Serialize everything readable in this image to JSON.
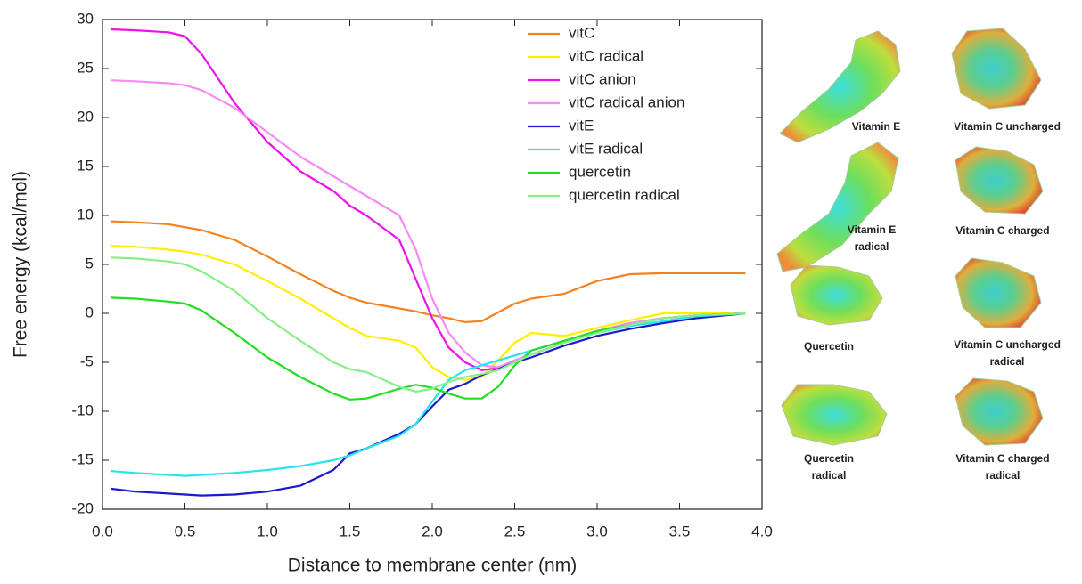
{
  "chart_data": {
    "type": "line",
    "x_label": "Distance to membrane center (nm)",
    "y_label": "Free energy (kcal/mol)",
    "xlim": [
      0,
      4
    ],
    "ylim": [
      -20,
      30
    ],
    "xticks": [
      {
        "value": 0,
        "label": "0.0"
      },
      {
        "value": 0.5,
        "label": "0.5"
      },
      {
        "value": 1,
        "label": "1.0"
      },
      {
        "value": 1.5,
        "label": "1.5"
      },
      {
        "value": 2,
        "label": "2.0"
      },
      {
        "value": 2.5,
        "label": "2.5"
      },
      {
        "value": 3,
        "label": "3.0"
      },
      {
        "value": 3.5,
        "label": "3.5"
      },
      {
        "value": 4,
        "label": "4.0"
      }
    ],
    "yticks": [
      -20,
      -15,
      -10,
      -5,
      0,
      5,
      10,
      15,
      20,
      25,
      30
    ],
    "legend": "upper right",
    "x": [
      0.05,
      0.2,
      0.4,
      0.5,
      0.6,
      0.8,
      1.0,
      1.2,
      1.4,
      1.5,
      1.6,
      1.8,
      1.9,
      2.0,
      2.1,
      2.2,
      2.3,
      2.4,
      2.5,
      2.6,
      2.8,
      3.0,
      3.2,
      3.4,
      3.6,
      3.9
    ],
    "series": [
      {
        "name": "vitC",
        "color": "#f5821f",
        "values": [
          9.4,
          9.3,
          9.1,
          8.8,
          8.5,
          7.5,
          5.8,
          4.0,
          2.3,
          1.6,
          1.1,
          0.5,
          0.2,
          -0.2,
          -0.5,
          -0.9,
          -0.8,
          0.1,
          1.0,
          1.5,
          2.0,
          3.3,
          4.0,
          4.1,
          4.1,
          4.1
        ]
      },
      {
        "name": "vitC radical",
        "color": "#ffee00",
        "values": [
          6.9,
          6.8,
          6.5,
          6.3,
          6.0,
          5.0,
          3.3,
          1.5,
          -0.5,
          -1.5,
          -2.3,
          -2.8,
          -3.5,
          -5.5,
          -6.5,
          -6.8,
          -6.5,
          -4.8,
          -3.0,
          -2.0,
          -2.3,
          -1.5,
          -0.7,
          0.0,
          0.0,
          0.0
        ]
      },
      {
        "name": "vitC anion",
        "color": "#ee11ee",
        "values": [
          29,
          28.9,
          28.7,
          28.3,
          26.5,
          21.5,
          17.5,
          14.5,
          12.5,
          11.0,
          10.0,
          7.5,
          3.5,
          -0.5,
          -3.5,
          -5.0,
          -5.8,
          -5.6,
          -4.8,
          -4.2,
          -3.0,
          -1.8,
          -1.0,
          -0.5,
          -0.2,
          0.0
        ]
      },
      {
        "name": "vitC radical anion",
        "color": "#f78af7",
        "values": [
          23.8,
          23.7,
          23.5,
          23.3,
          22.8,
          21.0,
          18.5,
          16.0,
          14.0,
          13.0,
          12.0,
          10.0,
          6.5,
          1.5,
          -2.0,
          -4.0,
          -5.3,
          -5.5,
          -4.8,
          -4.2,
          -3.0,
          -1.8,
          -1.0,
          -0.5,
          -0.2,
          0.0
        ]
      },
      {
        "name": "vitE",
        "color": "#1a1acc",
        "values": [
          -17.9,
          -18.2,
          -18.4,
          -18.5,
          -18.6,
          -18.5,
          -18.2,
          -17.6,
          -16.0,
          -14.3,
          -13.8,
          -12.3,
          -11.3,
          -9.5,
          -7.8,
          -7.2,
          -6.3,
          -5.7,
          -5.0,
          -4.5,
          -3.3,
          -2.3,
          -1.6,
          -1.0,
          -0.5,
          0.0
        ]
      },
      {
        "name": "vitE radical",
        "color": "#22e5f0",
        "values": [
          -16.1,
          -16.3,
          -16.5,
          -16.6,
          -16.5,
          -16.3,
          -16.0,
          -15.6,
          -15.0,
          -14.5,
          -13.8,
          -12.5,
          -11.3,
          -9.0,
          -6.8,
          -5.8,
          -5.3,
          -4.8,
          -4.3,
          -3.8,
          -2.8,
          -2.0,
          -1.3,
          -0.8,
          -0.3,
          0.0
        ]
      },
      {
        "name": "quercetin",
        "color": "#22dd22",
        "values": [
          1.6,
          1.5,
          1.2,
          1.0,
          0.3,
          -2.0,
          -4.5,
          -6.5,
          -8.2,
          -8.8,
          -8.7,
          -7.7,
          -7.3,
          -7.6,
          -8.2,
          -8.7,
          -8.7,
          -7.5,
          -5.3,
          -3.8,
          -2.8,
          -1.8,
          -1.2,
          -0.5,
          -0.2,
          0.0
        ]
      },
      {
        "name": "quercetin radical",
        "color": "#88ee88",
        "values": [
          5.7,
          5.6,
          5.3,
          5.0,
          4.3,
          2.3,
          -0.5,
          -2.8,
          -5.0,
          -5.7,
          -6.0,
          -7.5,
          -8.0,
          -7.7,
          -7.0,
          -6.5,
          -6.2,
          -5.8,
          -5.0,
          -4.2,
          -3.0,
          -2.0,
          -1.2,
          -0.5,
          -0.2,
          0.0
        ]
      }
    ]
  },
  "molecule_panel": {
    "labels": [
      [
        "Vitamin E"
      ],
      [
        "Vitamin C uncharged"
      ],
      [
        "Vitamin E",
        "radical"
      ],
      [
        "Vitamin C charged"
      ],
      [
        "Quercetin"
      ],
      [
        "Vitamin C uncharged",
        "radical"
      ],
      [
        "Quercetin",
        "radical"
      ],
      [
        "Vitamin C charged",
        "radical"
      ]
    ]
  }
}
